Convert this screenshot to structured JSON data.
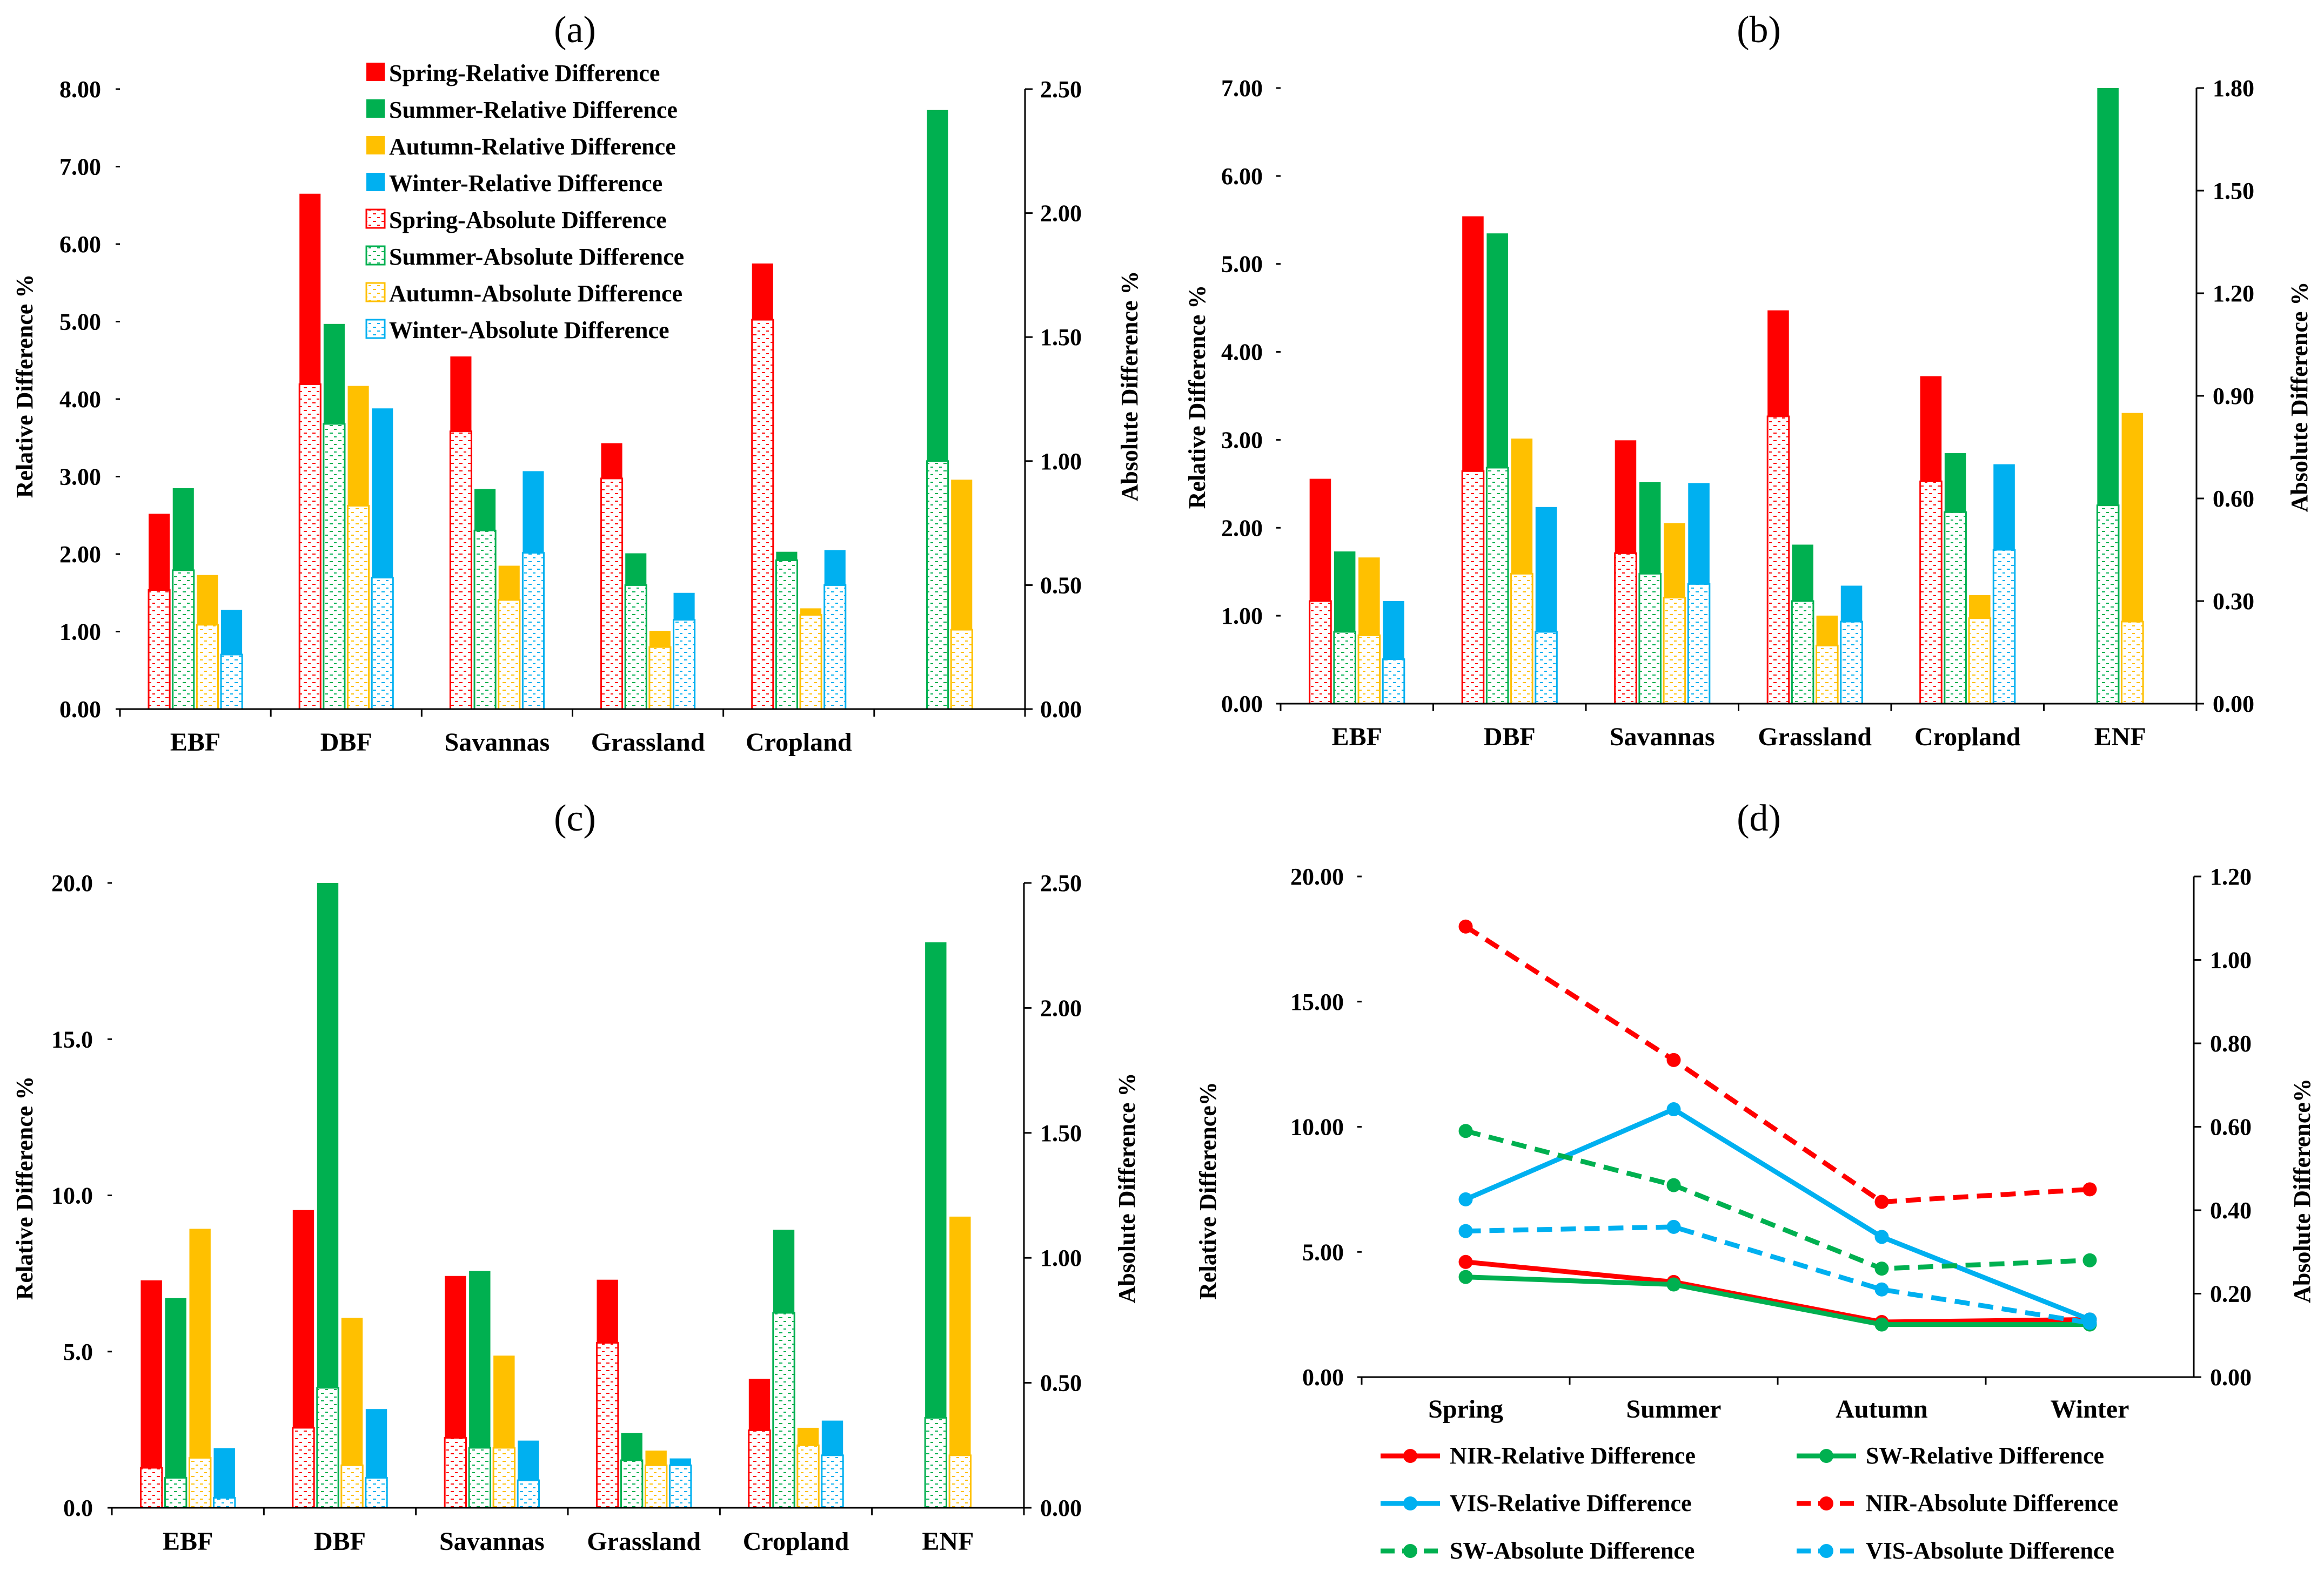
{
  "colors": {
    "spring": "#ff0000",
    "summer": "#00b050",
    "autumn": "#ffc000",
    "winter": "#00b0f0",
    "axis": "#000000",
    "gridline": "#d9d9d9"
  },
  "legend_a": [
    "Spring-Relative Difference",
    "Summer-Relative Difference",
    "Autumn-Relative Difference",
    "Winter-Relative Difference",
    "Spring-Absolute Difference",
    "Summer-Absolute Difference",
    "Autumn-Absolute Difference",
    "Winter-Absolute Difference"
  ],
  "legend_d": [
    "NIR-Relative Difference",
    "SW-Relative Difference",
    "VIS-Relative Difference",
    "NIR-Absolute Difference",
    "SW-Absolute Difference",
    "VIS-Absolute Difference"
  ],
  "chart_data": [
    {
      "panel": "(a)",
      "type": "bar",
      "ylabel": "Relative Difference %",
      "y2label": "Absolute Difference %",
      "ylim": [
        0,
        8
      ],
      "yticks": [
        "0.00",
        "1.00",
        "2.00",
        "3.00",
        "4.00",
        "5.00",
        "6.00",
        "7.00",
        "8.00"
      ],
      "y2lim": [
        0,
        2.5
      ],
      "y2ticks": [
        "0.00",
        "0.50",
        "1.00",
        "1.50",
        "2.00",
        "2.50"
      ],
      "categories": [
        "EBF",
        "DBF",
        "Savannas",
        "Grassland",
        "Cropland",
        ""
      ],
      "relative": {
        "Spring": [
          2.52,
          6.65,
          4.55,
          3.43,
          5.75,
          null
        ],
        "Summer": [
          2.85,
          4.97,
          2.84,
          2.01,
          2.03,
          7.73
        ],
        "Autumn": [
          1.73,
          4.17,
          1.85,
          1.01,
          1.3,
          2.96
        ],
        "Winter": [
          1.28,
          3.88,
          3.07,
          1.5,
          2.05,
          null
        ]
      },
      "absolute": {
        "Spring": [
          0.48,
          1.31,
          1.12,
          0.93,
          1.57,
          null
        ],
        "Summer": [
          0.56,
          1.15,
          0.72,
          0.5,
          0.6,
          1.0
        ],
        "Autumn": [
          0.34,
          0.82,
          0.44,
          0.25,
          0.38,
          0.32
        ],
        "Winter": [
          0.22,
          0.53,
          0.63,
          0.36,
          0.5,
          null
        ]
      }
    },
    {
      "panel": "(b)",
      "type": "bar",
      "ylabel": "Relative Difference %",
      "y2label": "Absolute Difference %",
      "ylim": [
        0,
        7.2
      ],
      "yticks": [
        "0.00",
        "1.00",
        "2.00",
        "3.00",
        "4.00",
        "5.00",
        "6.00",
        "7.00"
      ],
      "y2lim": [
        0,
        1.8
      ],
      "y2ticks": [
        "0.00",
        "0.30",
        "0.60",
        "0.90",
        "1.20",
        "1.50",
        "1.80"
      ],
      "categories": [
        "EBF",
        "DBF",
        "Savannas",
        "Grassland",
        "Cropland",
        "ENF"
      ],
      "relative": {
        "Spring": [
          2.63,
          5.7,
          3.08,
          4.6,
          3.83,
          null
        ],
        "Summer": [
          1.78,
          5.5,
          2.59,
          1.86,
          2.93,
          7.2
        ],
        "Autumn": [
          1.71,
          3.1,
          2.11,
          1.03,
          1.27,
          3.4
        ],
        "Winter": [
          1.2,
          2.3,
          2.58,
          1.38,
          2.8,
          null
        ]
      },
      "absolute": {
        "Spring": [
          0.3,
          0.68,
          0.44,
          0.84,
          0.65,
          null
        ],
        "Summer": [
          0.21,
          0.69,
          0.38,
          0.3,
          0.56,
          0.58
        ],
        "Autumn": [
          0.2,
          0.38,
          0.31,
          0.17,
          0.25,
          0.24
        ],
        "Winter": [
          0.13,
          0.21,
          0.35,
          0.24,
          0.45,
          null
        ]
      }
    },
    {
      "panel": "(c)",
      "type": "bar",
      "ylabel": "Relative Difference %",
      "y2label": "Absolute Difference %",
      "ylim": [
        0,
        20
      ],
      "yticks": [
        "0.0",
        "5.0",
        "10.0",
        "15.0",
        "20.0"
      ],
      "y2lim": [
        0,
        2.5
      ],
      "y2ticks": [
        "0.00",
        "0.50",
        "1.00",
        "1.50",
        "2.00",
        "2.50"
      ],
      "categories": [
        "EBF",
        "DBF",
        "Savannas",
        "Grassland",
        "Cropland",
        "ENF"
      ],
      "relative": {
        "Spring": [
          7.28,
          9.53,
          7.42,
          7.3,
          4.13,
          null
        ],
        "Summer": [
          6.71,
          20.0,
          7.58,
          2.39,
          8.9,
          18.1
        ],
        "Autumn": [
          8.93,
          6.08,
          4.87,
          1.83,
          2.56,
          9.32
        ],
        "Winter": [
          1.91,
          3.16,
          2.15,
          1.58,
          2.79,
          null
        ]
      },
      "absolute": {
        "Spring": [
          0.16,
          0.32,
          0.28,
          0.66,
          0.31,
          null
        ],
        "Summer": [
          0.12,
          0.48,
          0.24,
          0.19,
          0.78,
          0.36
        ],
        "Autumn": [
          0.2,
          0.17,
          0.24,
          0.17,
          0.25,
          0.21
        ],
        "Winter": [
          0.04,
          0.12,
          0.11,
          0.17,
          0.21,
          null
        ]
      }
    },
    {
      "panel": "(d)",
      "type": "line",
      "ylabel": "Relative Difference%",
      "y2label": "Absolute Difference%",
      "ylim": [
        0,
        20
      ],
      "yticks": [
        "0.00",
        "5.00",
        "10.00",
        "15.00",
        "20.00"
      ],
      "y2lim": [
        0,
        1.2
      ],
      "y2ticks": [
        "0.00",
        "0.20",
        "0.40",
        "0.60",
        "0.80",
        "1.00",
        "1.20"
      ],
      "categories": [
        "Spring",
        "Summer",
        "Autumn",
        "Winter"
      ],
      "series": [
        {
          "name": "NIR-Relative Difference",
          "axis": "left",
          "color": "#ff0000",
          "dash": false,
          "values": [
            4.6,
            3.8,
            2.2,
            2.3
          ]
        },
        {
          "name": "SW-Relative Difference",
          "axis": "left",
          "color": "#00b050",
          "dash": false,
          "values": [
            4.0,
            3.7,
            2.1,
            2.1
          ]
        },
        {
          "name": "VIS-Relative Difference",
          "axis": "left",
          "color": "#00b0f0",
          "dash": false,
          "values": [
            7.1,
            10.7,
            5.6,
            2.3
          ]
        },
        {
          "name": "NIR-Absolute Difference",
          "axis": "right",
          "color": "#ff0000",
          "dash": true,
          "values": [
            1.08,
            0.76,
            0.42,
            0.45
          ]
        },
        {
          "name": "SW-Absolute Difference",
          "axis": "right",
          "color": "#00b050",
          "dash": true,
          "values": [
            0.59,
            0.46,
            0.26,
            0.28
          ]
        },
        {
          "name": "VIS-Absolute Difference",
          "axis": "right",
          "color": "#00b0f0",
          "dash": true,
          "values": [
            0.35,
            0.36,
            0.21,
            0.13
          ]
        }
      ]
    }
  ]
}
